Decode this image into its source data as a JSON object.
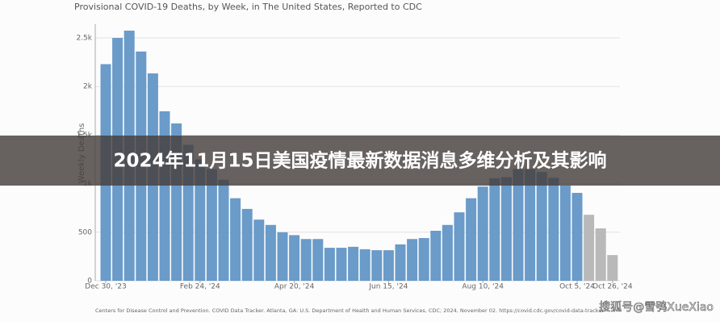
{
  "chart_data": {
    "type": "bar",
    "title": "Provisional COVID-19 Deaths, by Week, in The United States, Reported to CDC",
    "y_label": "Weekly Deaths",
    "source": "Centers for Disease Control and Prevention. COVID Data Tracker. Atlanta, GA: U.S. Department of Health and Human Services, CDC; 2024, November 02. https://covid.cdc.gov/covid-data-tracker",
    "categories": [
      "Dec 30, '23",
      null,
      null,
      null,
      null,
      null,
      null,
      null,
      "Feb 24, '24",
      null,
      null,
      null,
      null,
      null,
      null,
      null,
      "Apr 20, '24",
      null,
      null,
      null,
      null,
      null,
      null,
      null,
      "Jun 15, '24",
      null,
      null,
      null,
      null,
      null,
      null,
      null,
      "Aug 10, '24",
      null,
      null,
      null,
      null,
      null,
      null,
      null,
      "Oct 5, '24",
      null,
      null,
      "Oct 26, '24"
    ],
    "values": [
      2230,
      2500,
      2575,
      2360,
      2135,
      1745,
      1620,
      1400,
      1250,
      1150,
      1040,
      850,
      740,
      630,
      575,
      500,
      470,
      430,
      430,
      340,
      340,
      350,
      325,
      315,
      315,
      375,
      430,
      440,
      515,
      575,
      705,
      850,
      970,
      1055,
      1065,
      1150,
      1150,
      1120,
      1060,
      980,
      905,
      680,
      540,
      265
    ],
    "colors": [
      "#6a9bc9",
      "#6a9bc9",
      "#6a9bc9",
      "#6a9bc9",
      "#6a9bc9",
      "#6a9bc9",
      "#6a9bc9",
      "#6a9bc9",
      "#6a9bc9",
      "#6a9bc9",
      "#6a9bc9",
      "#6a9bc9",
      "#6a9bc9",
      "#6a9bc9",
      "#6a9bc9",
      "#6a9bc9",
      "#6a9bc9",
      "#6a9bc9",
      "#6a9bc9",
      "#6a9bc9",
      "#6a9bc9",
      "#6a9bc9",
      "#6a9bc9",
      "#6a9bc9",
      "#6a9bc9",
      "#6a9bc9",
      "#6a9bc9",
      "#6a9bc9",
      "#6a9bc9",
      "#6a9bc9",
      "#6a9bc9",
      "#6a9bc9",
      "#6a9bc9",
      "#6a9bc9",
      "#6a9bc9",
      "#6a9bc9",
      "#6a9bc9",
      "#6a9bc9",
      "#6a9bc9",
      "#6a9bc9",
      "#6a9bc9",
      "#b9b9b9",
      "#b9b9b9",
      "#b9b9b9"
    ],
    "ylim": [
      0,
      2500
    ],
    "yticks": [
      0,
      500,
      {
        "value": 1000,
        "label": "1k"
      },
      {
        "value": 1500,
        "label": "1.5k"
      },
      {
        "value": 2000,
        "label": "2k"
      },
      {
        "value": 2500,
        "label": "2.5k"
      }
    ],
    "grid": true
  },
  "banner": {
    "title": "2024年11月15日美国疫情最新数据消息多维分析及其影响"
  },
  "watermark": "搜狐号@雪鸮XueXiao"
}
